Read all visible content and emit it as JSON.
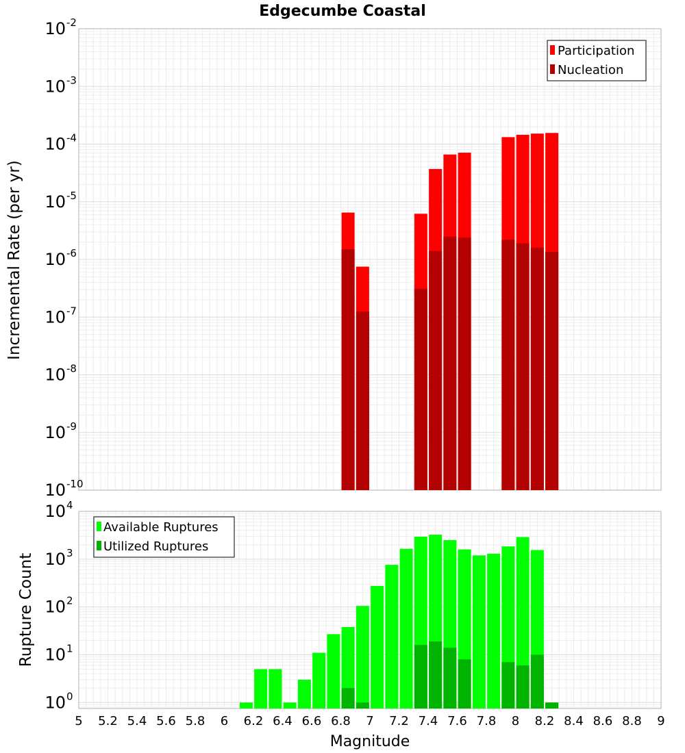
{
  "chart_data": [
    {
      "type": "bar",
      "title": "Edgecumbe Coastal",
      "xlabel": "",
      "ylabel": "Incremental Rate (per yr)",
      "yscale": "log",
      "ylim": [
        1e-10,
        0.01
      ],
      "xlim": [
        5,
        9
      ],
      "grid": true,
      "legend_position": "top-right",
      "y_tick_labels": [
        {
          "base": "10",
          "exp": "-10",
          "value": 1e-10
        },
        {
          "base": "10",
          "exp": "-9",
          "value": 1e-09
        },
        {
          "base": "10",
          "exp": "-8",
          "value": 1e-08
        },
        {
          "base": "10",
          "exp": "-7",
          "value": 1e-07
        },
        {
          "base": "10",
          "exp": "-6",
          "value": 1e-06
        },
        {
          "base": "10",
          "exp": "-5",
          "value": 1e-05
        },
        {
          "base": "10",
          "exp": "-4",
          "value": 0.0001
        },
        {
          "base": "10",
          "exp": "-3",
          "value": 0.001
        },
        {
          "base": "10",
          "exp": "-2",
          "value": 0.01
        }
      ],
      "series": [
        {
          "name": "Participation",
          "color": "#ff0000",
          "points": [
            {
              "x": 6.85,
              "y": 6.5e-06
            },
            {
              "x": 6.95,
              "y": 7.5e-07
            },
            {
              "x": 7.35,
              "y": 6.2e-06
            },
            {
              "x": 7.45,
              "y": 3.7e-05
            },
            {
              "x": 7.55,
              "y": 6.6e-05
            },
            {
              "x": 7.65,
              "y": 7.1e-05
            },
            {
              "x": 7.95,
              "y": 0.000132
            },
            {
              "x": 8.05,
              "y": 0.000145
            },
            {
              "x": 8.15,
              "y": 0.000152
            },
            {
              "x": 8.25,
              "y": 0.000156
            }
          ]
        },
        {
          "name": "Nucleation",
          "color": "#b30000",
          "points": [
            {
              "x": 6.85,
              "y": 1.5e-06
            },
            {
              "x": 6.95,
              "y": 1.25e-07
            },
            {
              "x": 7.35,
              "y": 3.1e-07
            },
            {
              "x": 7.45,
              "y": 1.4e-06
            },
            {
              "x": 7.55,
              "y": 2.5e-06
            },
            {
              "x": 7.65,
              "y": 2.4e-06
            },
            {
              "x": 7.95,
              "y": 2.2e-06
            },
            {
              "x": 8.05,
              "y": 1.9e-06
            },
            {
              "x": 8.15,
              "y": 1.6e-06
            },
            {
              "x": 8.25,
              "y": 1.35e-06
            }
          ]
        }
      ]
    },
    {
      "type": "bar",
      "title": "",
      "xlabel": "Magnitude",
      "ylabel": "Rupture Count",
      "yscale": "log",
      "ylim": [
        0.75,
        10000
      ],
      "xlim": [
        5,
        9
      ],
      "grid": true,
      "legend_position": "top-left",
      "x_tick_labels": [
        "5",
        "5.2",
        "5.4",
        "5.6",
        "5.8",
        "6",
        "6.2",
        "6.4",
        "6.6",
        "6.8",
        "7",
        "7.2",
        "7.4",
        "7.6",
        "7.8",
        "8",
        "8.2",
        "8.4",
        "8.6",
        "8.8",
        "9"
      ],
      "y_tick_labels": [
        {
          "base": "10",
          "exp": "0",
          "value": 1
        },
        {
          "base": "10",
          "exp": "1",
          "value": 10
        },
        {
          "base": "10",
          "exp": "2",
          "value": 100
        },
        {
          "base": "10",
          "exp": "3",
          "value": 1000
        },
        {
          "base": "10",
          "exp": "4",
          "value": 10000
        }
      ],
      "series": [
        {
          "name": "Available Ruptures",
          "color": "#00ff00",
          "points": [
            {
              "x": 6.15,
              "y": 1
            },
            {
              "x": 6.25,
              "y": 5
            },
            {
              "x": 6.35,
              "y": 5
            },
            {
              "x": 6.45,
              "y": 1
            },
            {
              "x": 6.55,
              "y": 3
            },
            {
              "x": 6.65,
              "y": 11
            },
            {
              "x": 6.75,
              "y": 27
            },
            {
              "x": 6.85,
              "y": 38
            },
            {
              "x": 6.95,
              "y": 105
            },
            {
              "x": 7.05,
              "y": 275
            },
            {
              "x": 7.15,
              "y": 760
            },
            {
              "x": 7.25,
              "y": 1650
            },
            {
              "x": 7.35,
              "y": 2950
            },
            {
              "x": 7.45,
              "y": 3250
            },
            {
              "x": 7.55,
              "y": 2500
            },
            {
              "x": 7.65,
              "y": 1600
            },
            {
              "x": 7.75,
              "y": 1200
            },
            {
              "x": 7.85,
              "y": 1300
            },
            {
              "x": 7.95,
              "y": 1850
            },
            {
              "x": 8.05,
              "y": 2900
            },
            {
              "x": 8.15,
              "y": 1550
            },
            {
              "x": 8.25,
              "y": 1
            }
          ]
        },
        {
          "name": "Utilized Ruptures",
          "color": "#00b300",
          "points": [
            {
              "x": 6.85,
              "y": 2
            },
            {
              "x": 6.95,
              "y": 1
            },
            {
              "x": 7.35,
              "y": 16
            },
            {
              "x": 7.45,
              "y": 19
            },
            {
              "x": 7.55,
              "y": 14
            },
            {
              "x": 7.65,
              "y": 8
            },
            {
              "x": 7.95,
              "y": 7
            },
            {
              "x": 8.05,
              "y": 6
            },
            {
              "x": 8.15,
              "y": 10
            },
            {
              "x": 8.25,
              "y": 1
            }
          ]
        }
      ]
    }
  ]
}
